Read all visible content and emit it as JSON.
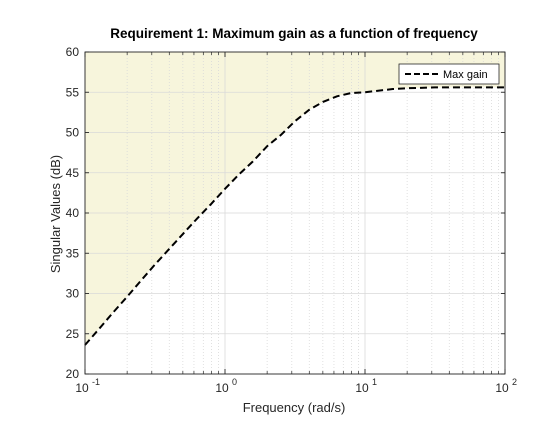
{
  "chart_data": {
    "type": "line",
    "title": "Requirement 1: Maximum gain as a function of frequency",
    "xlabel": "Frequency (rad/s)",
    "ylabel": "Singular Values (dB)",
    "xscale": "log",
    "xlim": [
      0.1,
      100
    ],
    "ylim": [
      20,
      60
    ],
    "xticks": [
      {
        "base": "10",
        "exp": "-1",
        "value": 0.1
      },
      {
        "base": "10",
        "exp": "0",
        "value": 1
      },
      {
        "base": "10",
        "exp": "1",
        "value": 10
      },
      {
        "base": "10",
        "exp": "2",
        "value": 100
      }
    ],
    "yticks": [
      "20",
      "25",
      "30",
      "35",
      "40",
      "45",
      "50",
      "55",
      "60"
    ],
    "grid": true,
    "minor_grid": true,
    "legend_position": "top-right",
    "colors": {
      "forbidden_region": "#f7f5dc",
      "line": "#000000",
      "grid": "#d9d9d9",
      "axes": "#262626"
    },
    "series": [
      {
        "name": "Max gain",
        "style": "dashed",
        "shade_above": true,
        "x": [
          0.1,
          0.126,
          0.158,
          0.2,
          0.251,
          0.316,
          0.398,
          0.501,
          0.631,
          0.794,
          1.0,
          1.26,
          1.58,
          2.0,
          2.51,
          3.16,
          3.98,
          5.01,
          6.31,
          7.94,
          10.0,
          12.6,
          15.8,
          20.0,
          25.1,
          31.6,
          39.8,
          50.1,
          63.1,
          79.4,
          100.0
        ],
        "y": [
          23.6,
          25.6,
          27.6,
          29.6,
          31.6,
          33.6,
          35.5,
          37.4,
          39.3,
          41.1,
          43.0,
          44.8,
          46.4,
          48.3,
          49.7,
          51.4,
          52.8,
          53.8,
          54.5,
          54.9,
          55.0,
          55.2,
          55.4,
          55.5,
          55.55,
          55.6,
          55.6,
          55.6,
          55.6,
          55.6,
          55.6
        ]
      }
    ]
  }
}
